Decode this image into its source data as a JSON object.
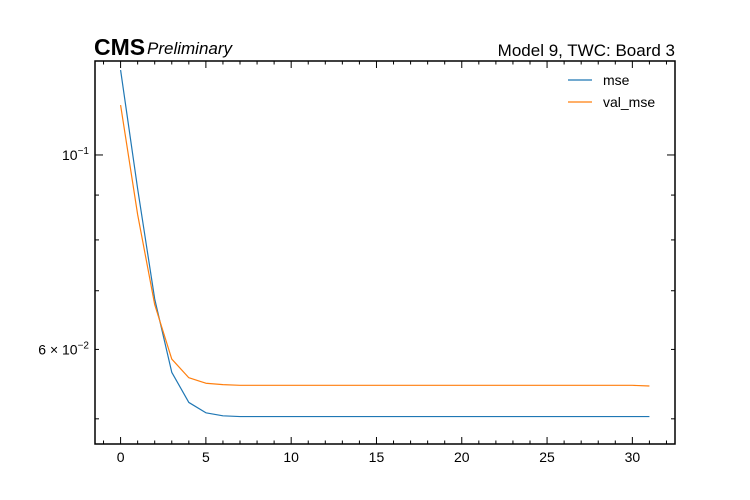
{
  "header": {
    "experiment": "CMS",
    "status": "Preliminary",
    "right_title": "Model 9, TWC: Board 3"
  },
  "chart_data": {
    "type": "line",
    "title": "Model 9, TWC: Board 3",
    "xlabel": "",
    "ylabel": "",
    "xlim": [
      -1.5,
      32.5
    ],
    "ylim": [
      0.0468,
      0.128
    ],
    "yscale": "log",
    "grid": false,
    "legend_position": "top-right",
    "x_ticks": [
      0,
      5,
      10,
      15,
      20,
      25,
      30
    ],
    "y_tick_labels": [
      {
        "value": 0.1,
        "base": "10",
        "exp": "−1"
      },
      {
        "value": 0.06,
        "base": "6 × 10",
        "exp": "−2"
      }
    ],
    "x": [
      0,
      1,
      2,
      3,
      4,
      5,
      6,
      7,
      8,
      9,
      10,
      11,
      12,
      13,
      14,
      15,
      16,
      17,
      18,
      19,
      20,
      21,
      22,
      23,
      24,
      25,
      26,
      27,
      28,
      29,
      30,
      31
    ],
    "series": [
      {
        "name": "mse",
        "color": "#1f77b4",
        "values": [
          0.125,
          0.0915,
          0.0685,
          0.0565,
          0.0522,
          0.0508,
          0.0504,
          0.0503,
          0.0503,
          0.0503,
          0.0503,
          0.0503,
          0.0503,
          0.0503,
          0.0503,
          0.0503,
          0.0503,
          0.0503,
          0.0503,
          0.0503,
          0.0503,
          0.0503,
          0.0503,
          0.0503,
          0.0503,
          0.0503,
          0.0503,
          0.0503,
          0.0503,
          0.0503,
          0.0503,
          0.0503
        ]
      },
      {
        "name": "val_mse",
        "color": "#ff7f0e",
        "values": [
          0.114,
          0.0855,
          0.0675,
          0.0585,
          0.0557,
          0.0549,
          0.0547,
          0.0546,
          0.0546,
          0.0546,
          0.0546,
          0.0546,
          0.0546,
          0.0546,
          0.0546,
          0.0546,
          0.0546,
          0.0546,
          0.0546,
          0.0546,
          0.0546,
          0.0546,
          0.0546,
          0.0546,
          0.0546,
          0.0546,
          0.0546,
          0.0546,
          0.0546,
          0.0546,
          0.0546,
          0.0545
        ]
      }
    ]
  }
}
